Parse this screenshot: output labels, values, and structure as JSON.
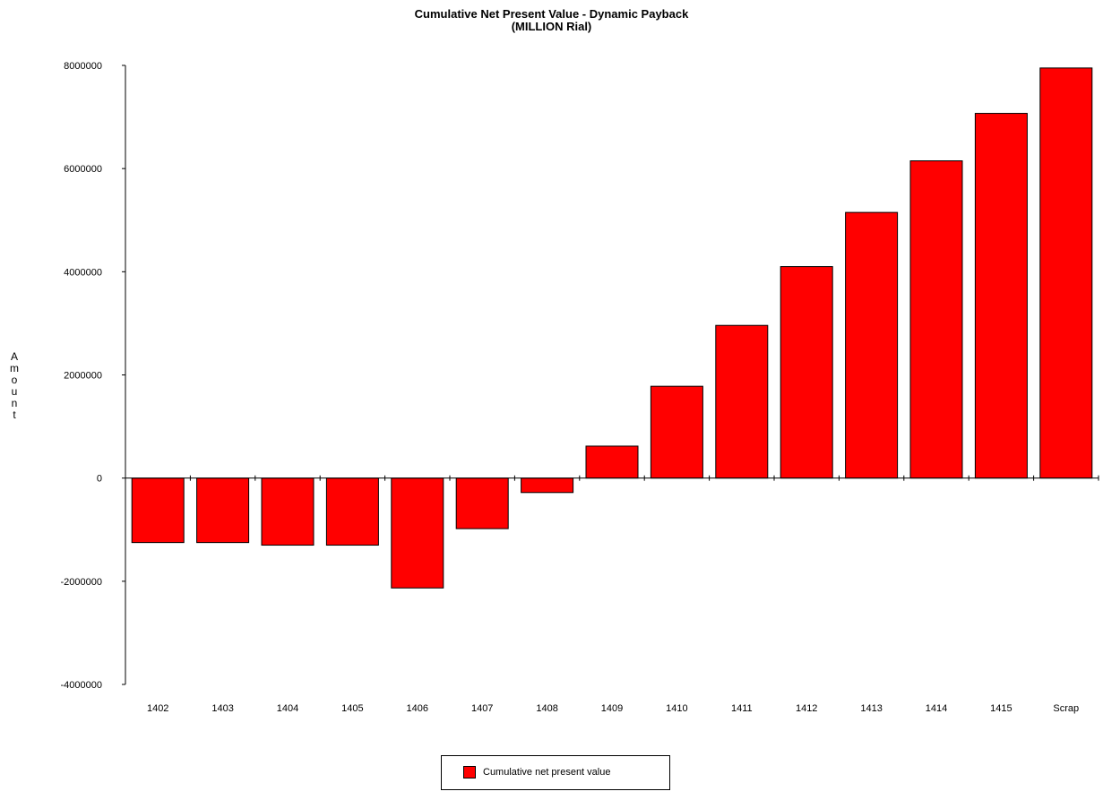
{
  "chart_data": {
    "type": "bar",
    "title": "Cumulative Net Present Value - Dynamic Payback",
    "subtitle": "(MILLION Rial)",
    "ylabel": "Amount",
    "xlabel": "",
    "categories": [
      "1402",
      "1403",
      "1404",
      "1405",
      "1406",
      "1407",
      "1408",
      "1409",
      "1410",
      "1411",
      "1412",
      "1413",
      "1414",
      "1415",
      "Scrap"
    ],
    "series": [
      {
        "name": "Cumulative net present value",
        "color": "#ff0000",
        "values": [
          -1250000,
          -1250000,
          -1300000,
          -1300000,
          -2130000,
          -980000,
          -280000,
          620000,
          1780000,
          2960000,
          4100000,
          5150000,
          6150000,
          7070000,
          7950000
        ]
      }
    ],
    "ylim": [
      -4000000,
      8000000
    ],
    "yticks": [
      "8000000",
      "6000000",
      "4000000",
      "2000000",
      "0",
      "-2000000",
      "-4000000"
    ],
    "grid": false,
    "legend_position": "bottom-center"
  }
}
